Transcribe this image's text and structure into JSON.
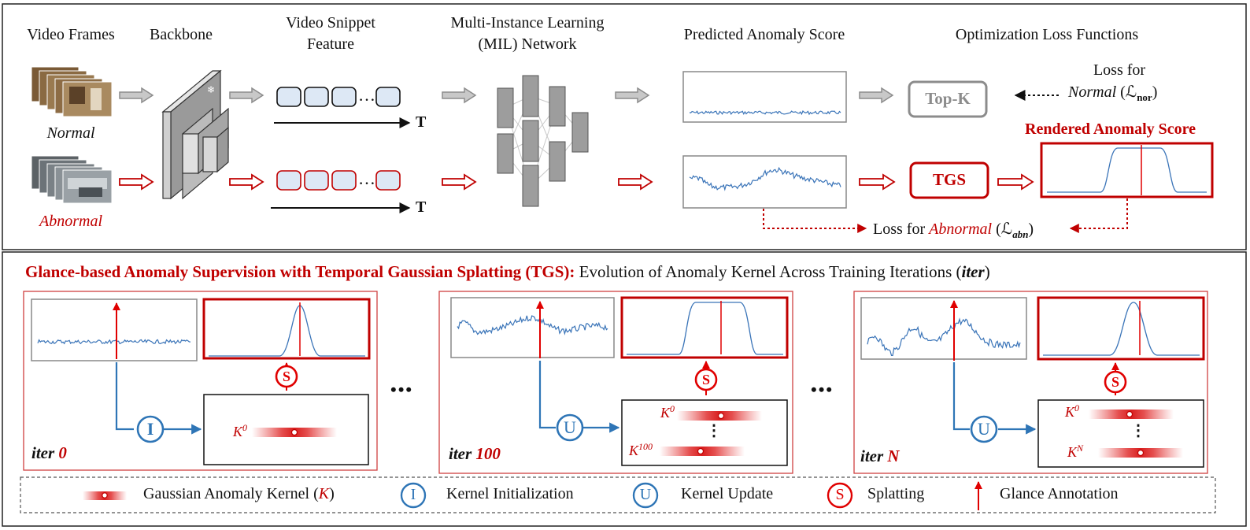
{
  "top": {
    "labels": {
      "video_frames": "Video Frames",
      "backbone": "Backbone",
      "snippet_feature_line1": "Video Snippet",
      "snippet_feature_line2": "Feature",
      "mil_line1": "Multi-Instance Learning",
      "mil_line2": "(MIL) Network",
      "predicted_score": "Predicted Anomaly Score",
      "optimization": "Optimization Loss Functions",
      "normal": "Normal",
      "abnormal": "Abnormal",
      "time_axis": "T",
      "ellipsis": "…",
      "topk": "Top-K",
      "tgs": "TGS",
      "rendered_score": "Rendered Anomaly Score",
      "loss_for": "Loss for",
      "loss_normal_word": "Normal",
      "loss_normal_symbol": "(ℒ",
      "loss_normal_sub": "nor",
      "loss_close": ")",
      "loss_abn_prefix": "Loss for",
      "loss_abn_word": "Abnormal",
      "loss_abn_symbol": "(ℒ",
      "loss_abn_sub": "abn",
      "loss_abn_close": ")"
    }
  },
  "bottom": {
    "title_red": "Glance-based  Anomaly Supervision with Temporal Gaussian Splatting (TGS):",
    "title_black": " Evolution of Anomaly Kernel Across Training Iterations (",
    "title_iter": "iter",
    "title_close": ")",
    "panels": [
      {
        "iter_word": "iter",
        "iter_value": "0",
        "op_letter": "I",
        "kernels": [
          {
            "label": "K",
            "sup": "0"
          }
        ]
      },
      {
        "iter_word": "iter",
        "iter_value": "100",
        "op_letter": "U",
        "kernels": [
          {
            "label": "K",
            "sup": "0"
          },
          {
            "label": "K",
            "sup": "100"
          }
        ]
      },
      {
        "iter_word": "iter",
        "iter_value": "N",
        "op_letter": "U",
        "kernels": [
          {
            "label": "K",
            "sup": "0"
          },
          {
            "label": "K",
            "sup": "N"
          }
        ]
      }
    ],
    "splat_letter": "S",
    "vdots": "⋮",
    "between_dots": "•••"
  },
  "legend": {
    "kernel_text": "Gaussian Anomaly Kernel (",
    "kernel_sym": "K",
    "kernel_close": ")",
    "init_letter": "I",
    "init_text": "Kernel Initialization",
    "update_letter": "U",
    "update_text": "Kernel Update",
    "splat_letter": "S",
    "splat_text": "Splatting",
    "glance_text": "Glance Annotation"
  },
  "colors": {
    "red": "#c00000",
    "blue": "#2e75b6",
    "gray": "#8c8c8c",
    "signal": "#3a74b8"
  }
}
